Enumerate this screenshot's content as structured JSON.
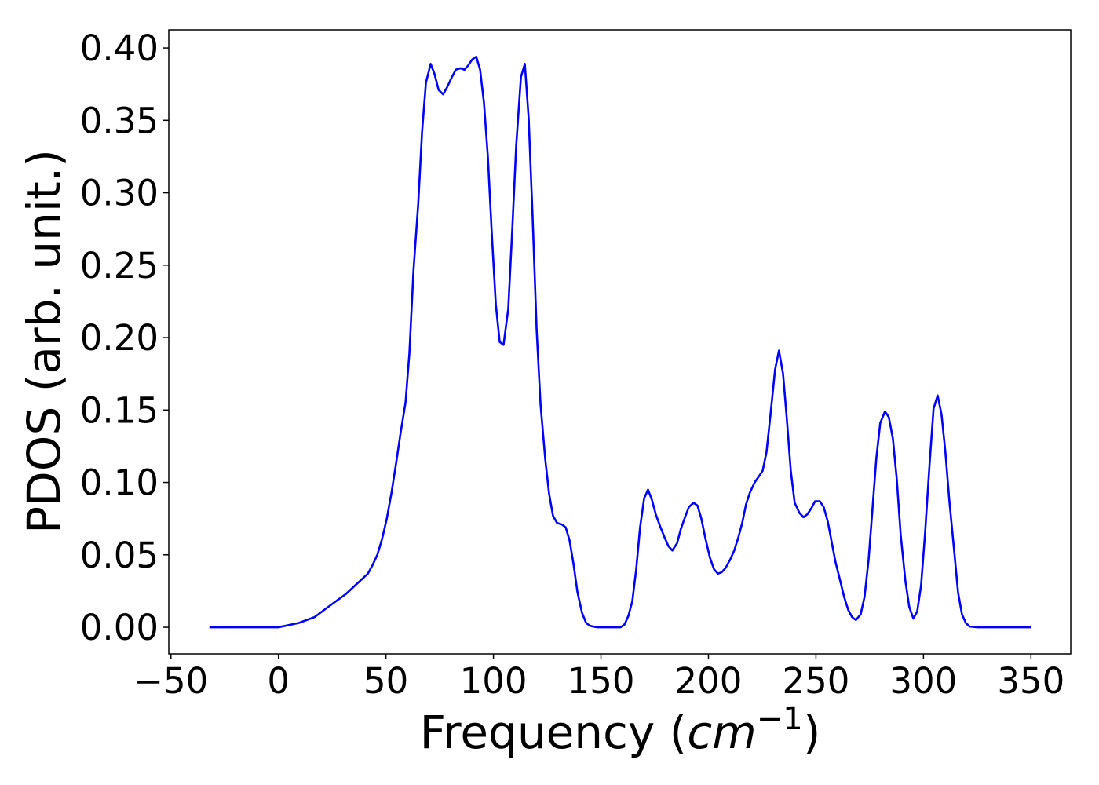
{
  "chart_data": {
    "type": "line",
    "xlabel": {
      "text": "Frequency (",
      "unit": "cm",
      "exponent": "−1",
      "close": ")"
    },
    "ylabel": "PDOS (arb. unit.)",
    "series": [
      {
        "color": "#0000ff",
        "x": [
          -32.1,
          0,
          9.5,
          16.8,
          24,
          31.4,
          39.4,
          41.6,
          43.8,
          46,
          48.2,
          50.4,
          52.6,
          54.7,
          56.9,
          59.1,
          60.9,
          62.8,
          65,
          66.8,
          68.6,
          70.8,
          72.6,
          74.5,
          76.6,
          78.5,
          80.7,
          82.5,
          84.7,
          86.5,
          88.3,
          90.1,
          92,
          93.8,
          95.6,
          97.4,
          99.3,
          101.1,
          102.9,
          104.7,
          106.9,
          108.8,
          110.6,
          112.8,
          114.6,
          116.4,
          118.2,
          120.1,
          121.9,
          124.1,
          125.9,
          127.7,
          129.6,
          131.8,
          133.6,
          135.4,
          137.2,
          139.1,
          141.2,
          143.1,
          144.9,
          148.2,
          159.1,
          161,
          162.8,
          164.6,
          166.4,
          168.2,
          170.1,
          171.9,
          173.7,
          175.5,
          177.7,
          179.6,
          181.4,
          183.2,
          185.4,
          187.2,
          189.1,
          190.9,
          193.1,
          194.9,
          196.7,
          198.5,
          200.7,
          202.6,
          204.4,
          206.2,
          208,
          210.2,
          212,
          213.9,
          215.7,
          217.5,
          219.3,
          221.5,
          223.4,
          225.2,
          227,
          228.8,
          231,
          232.8,
          234.7,
          236.5,
          238.3,
          240.1,
          242.3,
          244.2,
          246,
          247.8,
          249.6,
          251.8,
          253.6,
          255.5,
          257.3,
          259.1,
          261.3,
          263.1,
          265,
          266.8,
          268.6,
          270.8,
          272.6,
          274.5,
          276.3,
          278.1,
          279.9,
          282.1,
          283.9,
          285.8,
          287.6,
          289.4,
          291.6,
          293.4,
          295.3,
          297.1,
          298.9,
          300.7,
          302.9,
          304.7,
          306.6,
          308.4,
          310.2,
          312,
          314.2,
          316.1,
          317.9,
          319.7,
          321.5,
          325.2,
          350
        ],
        "values": [
          0,
          0,
          0.003,
          0.007,
          0.015,
          0.023,
          0.034,
          0.037,
          0.043,
          0.05,
          0.061,
          0.075,
          0.093,
          0.113,
          0.135,
          0.155,
          0.189,
          0.246,
          0.292,
          0.342,
          0.376,
          0.389,
          0.382,
          0.371,
          0.368,
          0.373,
          0.38,
          0.385,
          0.386,
          0.385,
          0.388,
          0.392,
          0.394,
          0.385,
          0.362,
          0.325,
          0.27,
          0.223,
          0.197,
          0.195,
          0.22,
          0.276,
          0.333,
          0.38,
          0.389,
          0.351,
          0.284,
          0.205,
          0.154,
          0.116,
          0.092,
          0.077,
          0.072,
          0.071,
          0.069,
          0.06,
          0.044,
          0.024,
          0.01,
          0.003,
          0.001,
          0,
          0,
          0.002,
          0.008,
          0.018,
          0.04,
          0.069,
          0.089,
          0.095,
          0.088,
          0.078,
          0.069,
          0.062,
          0.056,
          0.053,
          0.058,
          0.068,
          0.076,
          0.083,
          0.086,
          0.084,
          0.075,
          0.062,
          0.048,
          0.04,
          0.037,
          0.038,
          0.041,
          0.047,
          0.053,
          0.062,
          0.072,
          0.085,
          0.093,
          0.1,
          0.104,
          0.108,
          0.121,
          0.146,
          0.178,
          0.191,
          0.175,
          0.143,
          0.108,
          0.086,
          0.079,
          0.076,
          0.078,
          0.082,
          0.087,
          0.087,
          0.083,
          0.073,
          0.059,
          0.045,
          0.032,
          0.021,
          0.012,
          0.007,
          0.005,
          0.009,
          0.021,
          0.047,
          0.082,
          0.117,
          0.141,
          0.149,
          0.145,
          0.13,
          0.102,
          0.064,
          0.032,
          0.014,
          0.006,
          0.011,
          0.029,
          0.064,
          0.114,
          0.151,
          0.16,
          0.147,
          0.121,
          0.088,
          0.054,
          0.024,
          0.009,
          0.003,
          0.0005,
          0,
          0
        ]
      }
    ],
    "xlim": [
      -51,
      368.5
    ],
    "ylim": [
      -0.0184,
      0.4125
    ],
    "xticks": [
      {
        "value": -50,
        "label": "−50"
      },
      0,
      50,
      100,
      150,
      200,
      250,
      300,
      350
    ],
    "yticks": [
      {
        "value": 0,
        "label": "0.00"
      },
      {
        "value": 0.05,
        "label": "0.05"
      },
      {
        "value": 0.1,
        "label": "0.10"
      },
      {
        "value": 0.15,
        "label": "0.15"
      },
      {
        "value": 0.2,
        "label": "0.20"
      },
      {
        "value": 0.25,
        "label": "0.25"
      },
      {
        "value": 0.3,
        "label": "0.30"
      },
      {
        "value": 0.35,
        "label": "0.35"
      },
      {
        "value": 0.4,
        "label": "0.40"
      }
    ],
    "grid": false
  }
}
